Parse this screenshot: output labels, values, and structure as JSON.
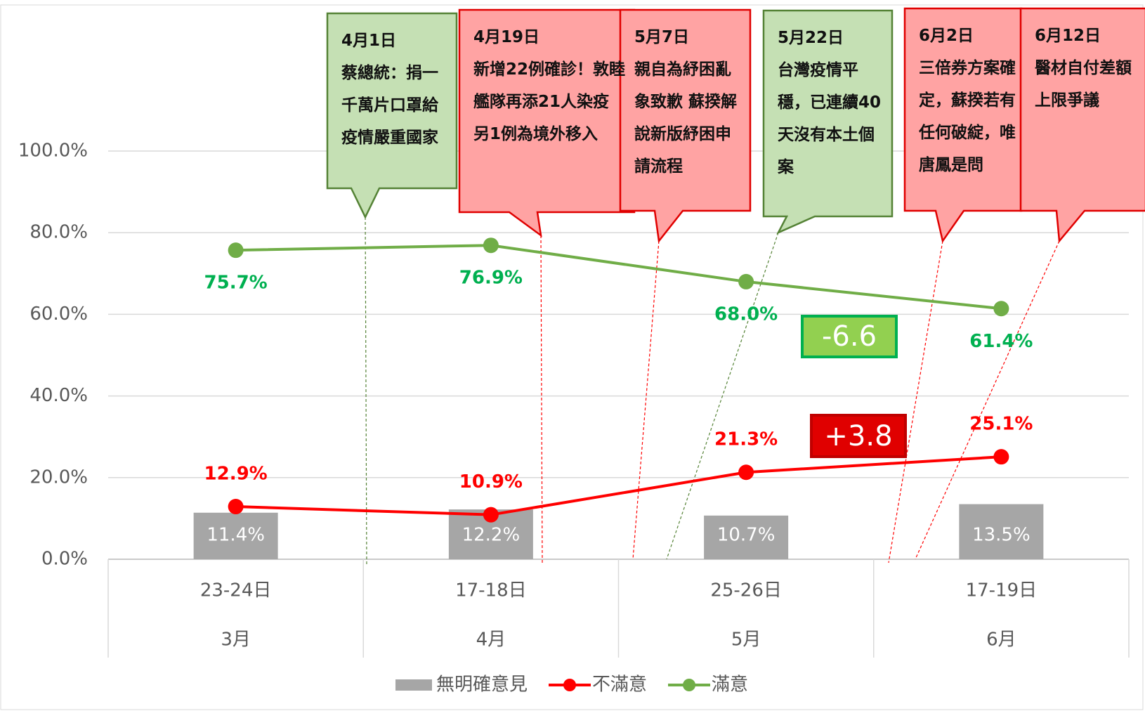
{
  "chart_data": {
    "type": "bar-line",
    "categories": [
      "23-24日",
      "17-18日",
      "25-26日",
      "17-19日"
    ],
    "groups": [
      "3月",
      "4月",
      "5月",
      "6月"
    ],
    "ylim": [
      0,
      100
    ],
    "yticks": [
      {
        "value": 0,
        "label": "0.0%"
      },
      {
        "value": 20,
        "label": "20.0%"
      },
      {
        "value": 40,
        "label": "40.0%"
      },
      {
        "value": 60,
        "label": "60.0%"
      },
      {
        "value": 80,
        "label": "80.0%"
      },
      {
        "value": 100,
        "label": "100.0%"
      }
    ],
    "grid": true,
    "legend": "bottom",
    "series": [
      {
        "name": "無明確意見",
        "type": "bar",
        "color": "#a6a6a6",
        "values": [
          11.4,
          12.2,
          10.7,
          13.5
        ],
        "value_labels": [
          "11.4%",
          "12.2%",
          "10.7%",
          "13.5%"
        ]
      },
      {
        "name": "不滿意",
        "type": "line",
        "color": "#ff0000",
        "values": [
          12.9,
          10.9,
          21.3,
          25.1
        ],
        "value_labels": [
          "12.9%",
          "10.9%",
          "21.3%",
          "25.1%"
        ]
      },
      {
        "name": "滿意",
        "type": "line",
        "color": "#70ad47",
        "label_color": "#00b050",
        "values": [
          75.7,
          76.9,
          68.0,
          61.4
        ],
        "value_labels": [
          "75.7%",
          "76.9%",
          "68.0%",
          "61.4%"
        ]
      }
    ],
    "annotations": [
      {
        "date": "4月1日",
        "text": "蔡總統：捐一千萬片口罩給疫情嚴重國家",
        "color": "#c5e0b4",
        "border": "#548235"
      },
      {
        "date": "4月19日",
        "text": "新增22例確診！敦睦艦隊再添21人染疫 另1例為境外移入",
        "color": "#ffa3a3",
        "border": "#e00000"
      },
      {
        "date": "5月7日",
        "text": "親自為紓困亂象致歉 蘇揆解說新版紓困申請流程",
        "color": "#ffa3a3",
        "border": "#e00000"
      },
      {
        "date": "5月22日",
        "text": "台灣疫情平穩，已連續40天沒有本土個案",
        "color": "#c5e0b4",
        "border": "#548235"
      },
      {
        "date": "6月2日",
        "text": "三倍券方案確定，蘇揆若有任何破綻，唯唐鳳是問",
        "color": "#ffa3a3",
        "border": "#e00000"
      },
      {
        "date": "6月12日",
        "text": "醫材自付差額上限爭議",
        "color": "#ffa3a3",
        "border": "#e00000"
      }
    ],
    "deltas": [
      {
        "text": "-6.6",
        "color": "#92d050",
        "border": "#00b050"
      },
      {
        "text": "+3.8",
        "color": "#e00000",
        "border": "#c00000"
      }
    ]
  }
}
